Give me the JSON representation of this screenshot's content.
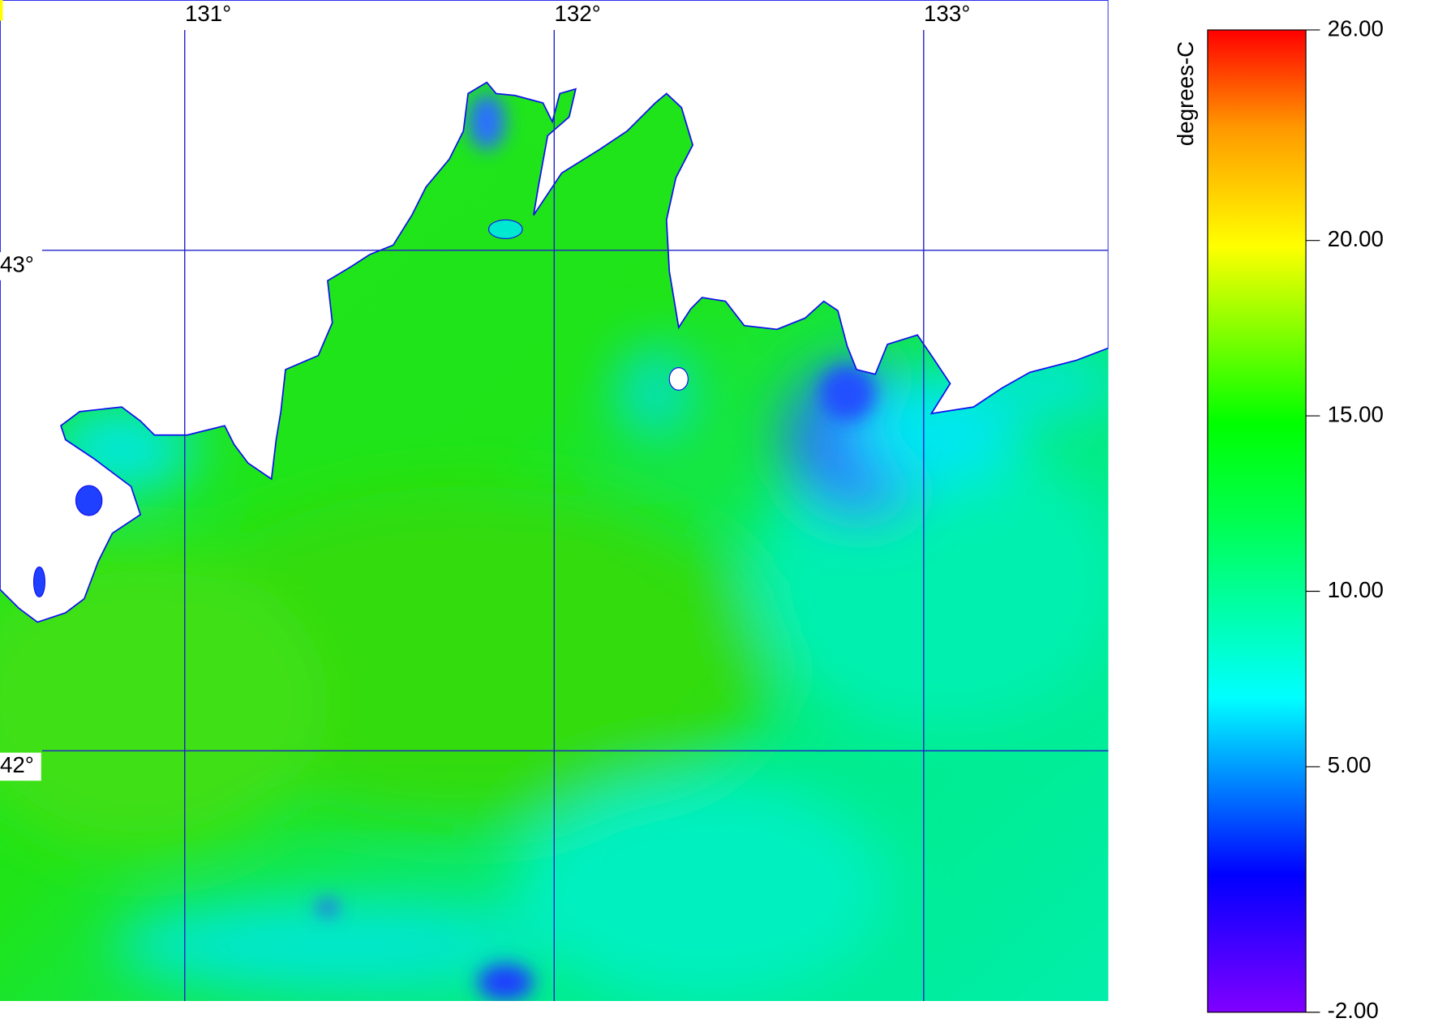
{
  "map": {
    "lonlim": [
      130.5,
      133.5
    ],
    "latlim": [
      41.5,
      43.5
    ],
    "lon_ticks": [
      {
        "value": 131,
        "label": "131°"
      },
      {
        "value": 132,
        "label": "132°"
      },
      {
        "value": 133,
        "label": "133°"
      }
    ],
    "lat_ticks": [
      {
        "value": 43,
        "label": "43°"
      },
      {
        "value": 42,
        "label": "42°"
      }
    ],
    "colorbar": {
      "label": "degrees-C",
      "lim": [
        -2,
        26
      ],
      "ticks": [
        {
          "value": 26,
          "label": "26.00"
        },
        {
          "value": 20,
          "label": "20.00"
        },
        {
          "value": 15,
          "label": "15.00"
        },
        {
          "value": 10,
          "label": "10.00"
        },
        {
          "value": 5,
          "label": "5.00"
        },
        {
          "value": -2,
          "label": "-2.00"
        }
      ]
    }
  }
}
